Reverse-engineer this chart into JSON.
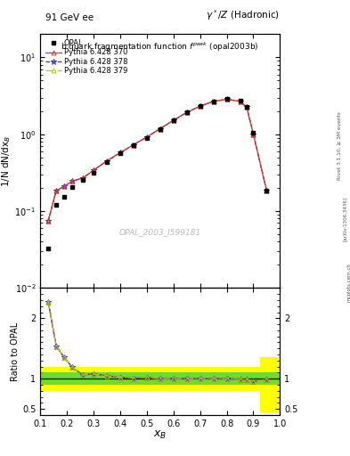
{
  "xB": [
    0.13,
    0.16,
    0.19,
    0.22,
    0.26,
    0.3,
    0.35,
    0.4,
    0.45,
    0.5,
    0.55,
    0.6,
    0.65,
    0.7,
    0.75,
    0.8,
    0.85,
    0.875,
    0.9,
    0.95
  ],
  "opal_y": [
    0.033,
    0.12,
    0.155,
    0.205,
    0.255,
    0.315,
    0.43,
    0.565,
    0.72,
    0.9,
    1.18,
    1.52,
    1.92,
    2.32,
    2.68,
    2.85,
    2.72,
    2.28,
    1.05,
    0.185
  ],
  "py370_y": [
    0.075,
    0.185,
    0.21,
    0.245,
    0.27,
    0.34,
    0.45,
    0.575,
    0.73,
    0.92,
    1.18,
    1.52,
    1.92,
    2.32,
    2.68,
    2.85,
    2.68,
    2.24,
    1.0,
    0.183
  ],
  "py378_y": [
    0.075,
    0.185,
    0.21,
    0.245,
    0.27,
    0.34,
    0.45,
    0.575,
    0.73,
    0.92,
    1.18,
    1.52,
    1.92,
    2.32,
    2.68,
    2.85,
    2.68,
    2.24,
    1.0,
    0.183
  ],
  "py379_y": [
    0.075,
    0.185,
    0.21,
    0.245,
    0.27,
    0.34,
    0.45,
    0.575,
    0.73,
    0.92,
    1.18,
    1.52,
    1.92,
    2.32,
    2.68,
    2.85,
    2.68,
    2.24,
    1.0,
    0.183
  ],
  "ratio370": [
    2.27,
    1.54,
    1.35,
    1.19,
    1.06,
    1.08,
    1.05,
    1.02,
    1.01,
    1.02,
    1.0,
    1.0,
    1.0,
    1.0,
    1.0,
    1.0,
    0.985,
    0.982,
    0.952,
    0.99
  ],
  "ratio378": [
    2.27,
    1.54,
    1.35,
    1.19,
    1.06,
    1.08,
    1.05,
    1.02,
    1.01,
    1.02,
    1.0,
    1.0,
    1.0,
    1.0,
    1.0,
    1.0,
    0.985,
    0.982,
    0.952,
    0.99
  ],
  "ratio379": [
    2.27,
    1.54,
    1.35,
    1.19,
    1.06,
    1.08,
    1.05,
    1.02,
    1.01,
    1.02,
    1.0,
    1.0,
    1.0,
    1.0,
    1.0,
    1.0,
    0.985,
    0.982,
    0.952,
    0.99
  ],
  "band_x_edges": [
    0.1,
    0.175,
    0.225,
    0.275,
    0.45,
    0.7,
    0.875,
    0.925,
    1.0
  ],
  "band_yellow_lo": [
    0.8,
    0.8,
    0.8,
    0.8,
    0.8,
    0.8,
    0.8,
    0.45,
    0.45
  ],
  "band_yellow_hi": [
    1.2,
    1.2,
    1.2,
    1.2,
    1.2,
    1.2,
    1.2,
    1.35,
    1.35
  ],
  "band_green_lo": [
    0.9,
    0.9,
    0.9,
    0.9,
    0.9,
    0.9,
    0.9,
    0.9,
    0.9
  ],
  "band_green_hi": [
    1.1,
    1.1,
    1.1,
    1.1,
    1.1,
    1.1,
    1.1,
    1.1,
    1.1
  ],
  "color_370": "#dd3333",
  "color_378": "#3333cc",
  "color_379": "#aacc00",
  "ylim_main": [
    0.01,
    20
  ],
  "ylim_ratio": [
    0.4,
    2.5
  ],
  "xlim": [
    0.1,
    1.0
  ],
  "yticks_ratio": [
    0.5,
    1.0,
    2.0
  ],
  "ytick_labels_ratio_left": [
    "0.5",
    "1",
    "2"
  ],
  "ytick_labels_ratio_right": [
    "0.5",
    "1",
    "2"
  ]
}
